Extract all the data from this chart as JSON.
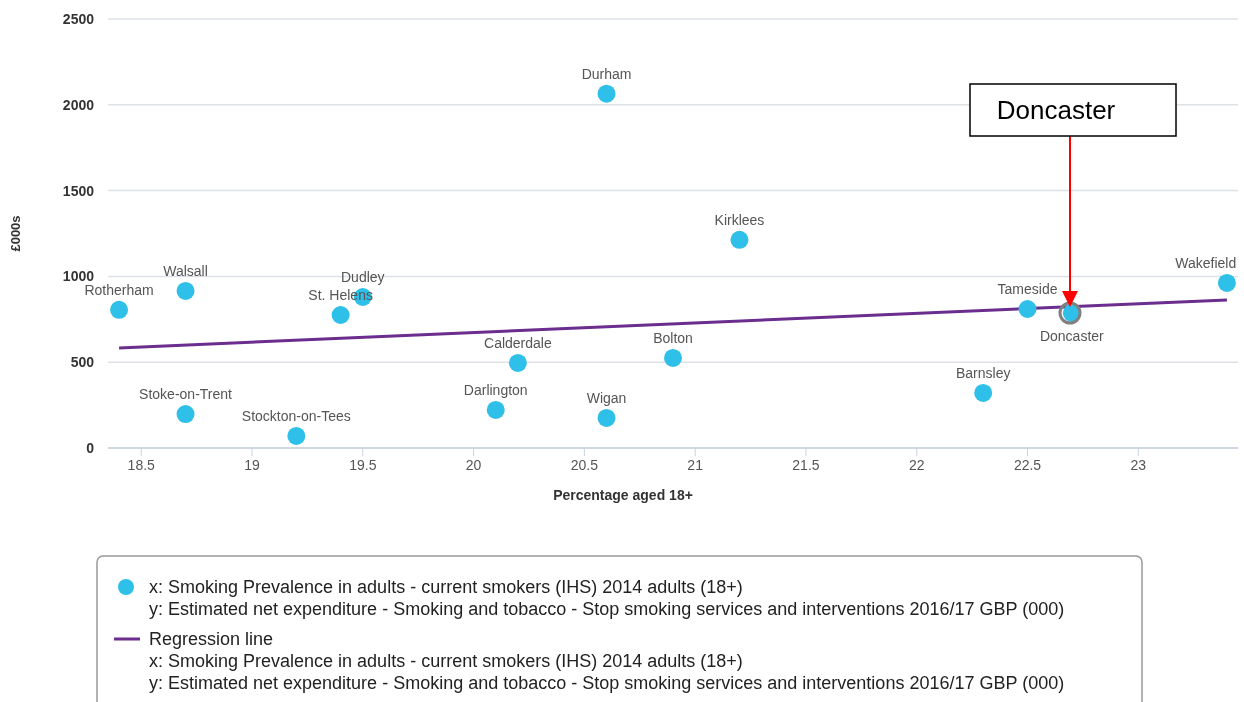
{
  "chart_data": {
    "type": "scatter",
    "xlabel": "Percentage aged 18+",
    "ylabel": "£000s",
    "xlim": [
      18.35,
      23.45
    ],
    "xticks": [
      18.5,
      19,
      19.5,
      20,
      20.5,
      21,
      21.5,
      22,
      22.5,
      23
    ],
    "ylim": [
      0,
      2500
    ],
    "yticks": [
      0,
      500,
      1000,
      1500,
      2000,
      2500
    ],
    "grid": "y",
    "legend": "bottom",
    "marker": "circle",
    "series": [
      {
        "name": "x: Smoking Prevalence in adults - current smokers (IHS) 2014 adults (18+)\ny: Estimated net expenditure - Smoking and tobacco - Stop smoking services and interventions 2016/17 GBP (000)",
        "color": "#2ec0e8",
        "x": [
          18.4,
          18.7,
          18.7,
          19.2,
          19.4,
          19.5,
          20.1,
          20.2,
          20.6,
          20.6,
          20.9,
          21.2,
          22.3,
          22.5,
          22.7,
          23.4
        ],
        "values": [
          805,
          915,
          198,
          70,
          775,
          880,
          222,
          496,
          2065,
          175,
          525,
          1213,
          321,
          810,
          787,
          962
        ]
      },
      {
        "name": "Regression line\nx: Smoking Prevalence in adults - current smokers (IHS) 2014 adults (18+)\ny: Estimated net expenditure - Smoking and tobacco - Stop smoking services and interventions 2016/17 GBP (000)",
        "type": "line",
        "marker": "none",
        "color": "#6b2d8e",
        "x": [
          18.4,
          23.4
        ],
        "values": [
          583,
          863
        ]
      }
    ],
    "annotations": [
      {
        "text": "Rotherham",
        "x": 18.4,
        "y": 805
      },
      {
        "text": "Walsall",
        "x": 18.7,
        "y": 915
      },
      {
        "text": "Stoke-on-Trent",
        "x": 18.7,
        "y": 198
      },
      {
        "text": "Stockton-on-Tees",
        "x": 19.2,
        "y": 70
      },
      {
        "text": "St. Helens",
        "x": 19.4,
        "y": 775
      },
      {
        "text": "Dudley",
        "x": 19.5,
        "y": 880
      },
      {
        "text": "Darlington",
        "x": 20.1,
        "y": 222
      },
      {
        "text": "Calderdale",
        "x": 20.2,
        "y": 496
      },
      {
        "text": "Durham",
        "x": 20.6,
        "y": 2065
      },
      {
        "text": "Wigan",
        "x": 20.6,
        "y": 175
      },
      {
        "text": "Bolton",
        "x": 20.9,
        "y": 525
      },
      {
        "text": "Kirklees",
        "x": 21.2,
        "y": 1213
      },
      {
        "text": "Barnsley",
        "x": 22.3,
        "y": 321
      },
      {
        "text": "Tameside",
        "x": 22.5,
        "y": 810
      },
      {
        "text": "Doncaster",
        "x": 22.7,
        "y": 787
      },
      {
        "text": "Wakefield",
        "x": 23.4,
        "y": 962
      },
      "Doncaster"
    ]
  }
}
